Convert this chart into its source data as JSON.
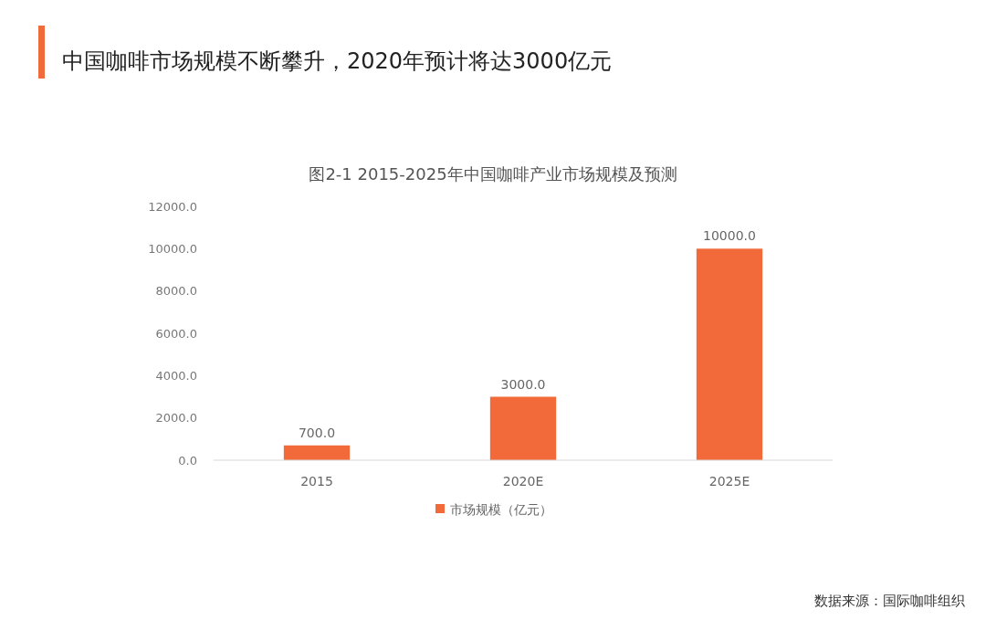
{
  "chart_data": {
    "type": "bar",
    "title": "中国咖啡市场规模不断攀升，2020年预计将达3000亿元",
    "subtitle": "图2-1 2015-2025年中国咖啡产业市场规模及预测",
    "categories": [
      "2015",
      "2020E",
      "2025E"
    ],
    "series": [
      {
        "name": "市场规模（亿元）",
        "color": "#f26a3a",
        "values": [
          700,
          3000,
          10000
        ],
        "value_labels": [
          "700.0",
          "3000.0",
          "10000.0"
        ]
      }
    ],
    "ylim": [
      0,
      12000
    ],
    "yticks": [
      {
        "value": 0,
        "label": "0.0"
      },
      {
        "value": 2000,
        "label": "2000.0"
      },
      {
        "value": 4000,
        "label": "4000.0"
      },
      {
        "value": 6000,
        "label": "6000.0"
      },
      {
        "value": 8000,
        "label": "8000.0"
      },
      {
        "value": 10000,
        "label": "10000.0"
      },
      {
        "value": 12000,
        "label": "12000.0"
      }
    ],
    "legend": "bottom",
    "annotations": [
      "数据来源：国际咖啡组织"
    ]
  }
}
